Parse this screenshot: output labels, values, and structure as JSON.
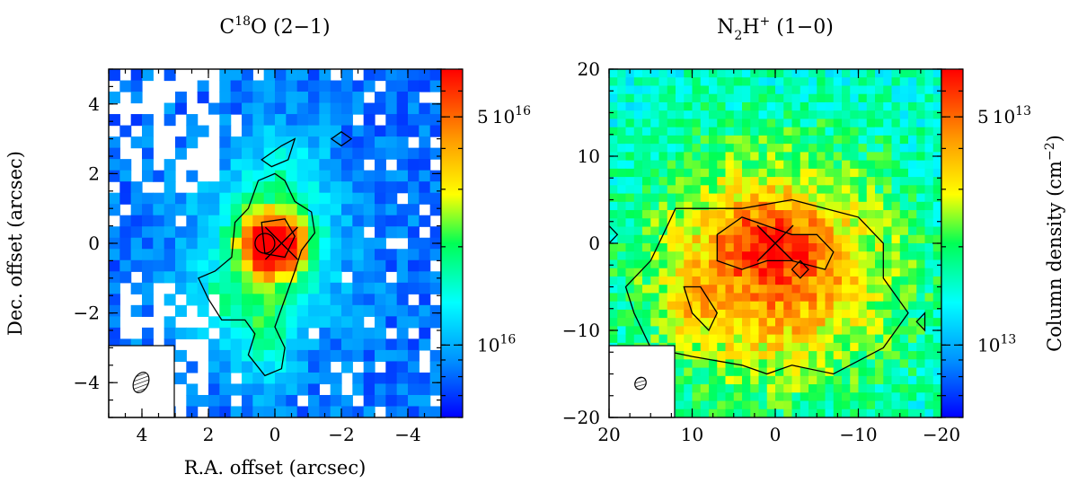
{
  "chart_data": [
    {
      "type": "heatmap",
      "title": "C",
      "title_sup": "18",
      "title_rest": "O (2−1)",
      "xlabel": "R.A. offset (arcsec)",
      "ylabel": "Dec. offset (arcsec)",
      "xlim": [
        5,
        -5
      ],
      "ylim": [
        -5,
        5
      ],
      "x_ticks": [
        4,
        2,
        0,
        -2,
        -4
      ],
      "y_ticks": [
        -4,
        -2,
        0,
        2,
        4
      ],
      "tick_labels_x": [
        "4",
        "2",
        "0",
        "−2",
        "−4"
      ],
      "tick_labels_y": [
        "−4",
        "−2",
        "0",
        "2",
        "4"
      ],
      "colorbar": {
        "scale": "log",
        "range": [
          6000000000000000.0,
          7e+16
        ],
        "labels": [
          {
            "value": 5e+16,
            "mantissa": "5",
            "base": "10",
            "exp": "16"
          },
          {
            "value": 1e+16,
            "mantissa": "",
            "base": "10",
            "exp": "16"
          }
        ]
      },
      "peak": {
        "x": 0,
        "y": 0,
        "value": 6.5e+16
      },
      "marker": {
        "x": -0.2,
        "y": 0
      }
    },
    {
      "type": "heatmap",
      "title": "N",
      "title_sub": "2",
      "title_mid": "H",
      "title_sup": "+",
      "title_rest": " (1−0)",
      "xlim": [
        20,
        -20
      ],
      "ylim": [
        -20,
        20
      ],
      "x_ticks": [
        20,
        10,
        0,
        -10,
        -20
      ],
      "y_ticks": [
        -20,
        -10,
        0,
        10,
        20
      ],
      "tick_labels_x": [
        "20",
        "10",
        "0",
        "−10",
        "−20"
      ],
      "tick_labels_y": [
        "−20",
        "−10",
        "0",
        "10",
        "20"
      ],
      "colorbar": {
        "scale": "log",
        "range": [
          6000000000000.0,
          70000000000000.0
        ],
        "title": "Column density (cm",
        "title_sup": "−2",
        "title_end": ")",
        "labels": [
          {
            "value": 50000000000000.0,
            "mantissa": "5",
            "base": "10",
            "exp": "13"
          },
          {
            "value": 10000000000000.0,
            "mantissa": "",
            "base": "10",
            "exp": "13"
          }
        ]
      },
      "peak": {
        "x": 0,
        "y": 0,
        "value": 60000000000000.0
      },
      "marker": {
        "x": 0,
        "y": 0
      }
    }
  ],
  "colors": {
    "colormap": [
      "#0000ff",
      "#0096ff",
      "#00ffff",
      "#00ff55",
      "#ffff00",
      "#ff9900",
      "#ff0000"
    ],
    "contour": "#000000",
    "blank": "#ffffff"
  }
}
